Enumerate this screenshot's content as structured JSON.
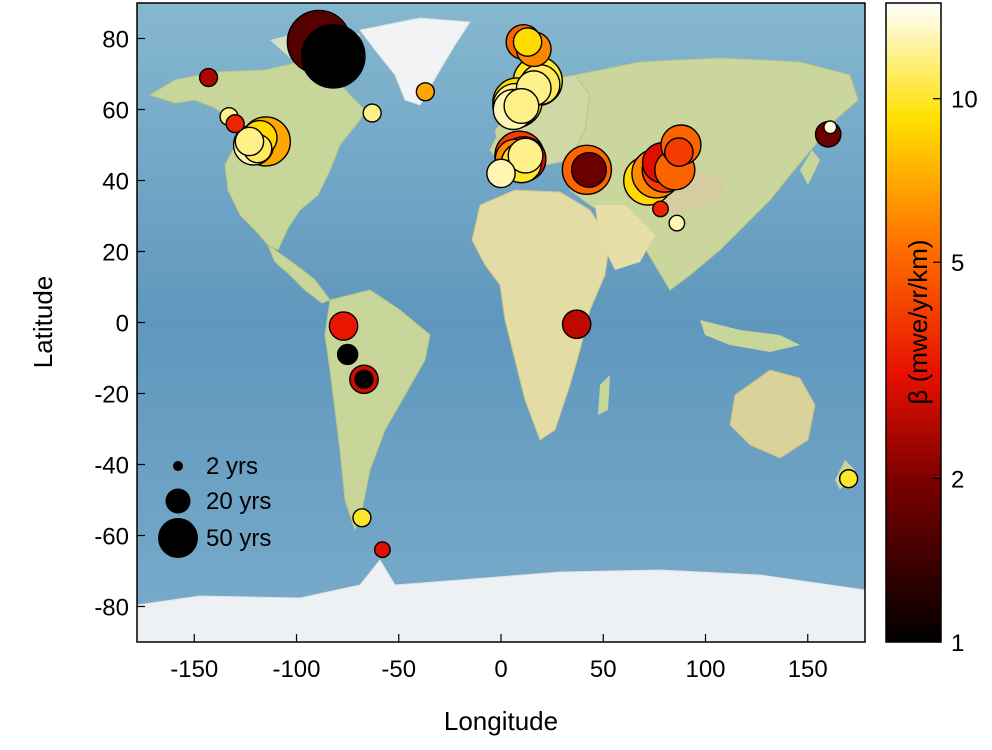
{
  "chart_data": {
    "type": "scatter",
    "background": "world map",
    "xlabel": "Longitude",
    "ylabel": "Latitude",
    "xlim": [
      -178,
      178
    ],
    "ylim": [
      -90,
      90
    ],
    "xticks": [
      -150,
      -100,
      -50,
      0,
      50,
      100,
      150
    ],
    "yticks": [
      -80,
      -60,
      -40,
      -20,
      0,
      20,
      40,
      60,
      80
    ],
    "grid": false,
    "colorbar": {
      "label": "β (mwe/yr/km)",
      "scale": "log",
      "range": [
        1,
        15
      ],
      "ticks": [
        1,
        2,
        5,
        10
      ],
      "colormap": "hot"
    },
    "size_legend": {
      "placement": "bottom-left",
      "entries": [
        {
          "label": "2 yrs",
          "years": 2
        },
        {
          "label": "20 yrs",
          "years": 20
        },
        {
          "label": "50 yrs",
          "years": 50
        }
      ]
    },
    "points": [
      {
        "lon": -89,
        "lat": 79,
        "years": 50,
        "beta": 1.6
      },
      {
        "lon": -82,
        "lat": 75,
        "years": 50,
        "beta": 1.0
      },
      {
        "lon": -143,
        "lat": 69,
        "years": 4,
        "beta": 2.4
      },
      {
        "lon": -37,
        "lat": 65,
        "years": 4,
        "beta": 7
      },
      {
        "lon": -63,
        "lat": 59,
        "years": 4,
        "beta": 12
      },
      {
        "lon": -133,
        "lat": 58,
        "years": 4,
        "beta": 12
      },
      {
        "lon": -130,
        "lat": 56,
        "years": 4,
        "beta": 3.5
      },
      {
        "lon": -115,
        "lat": 51,
        "years": 30,
        "beta": 7
      },
      {
        "lon": -118,
        "lat": 52,
        "years": 15,
        "beta": 9
      },
      {
        "lon": -121,
        "lat": 50,
        "years": 20,
        "beta": 13
      },
      {
        "lon": -119,
        "lat": 49,
        "years": 10,
        "beta": 11
      },
      {
        "lon": -123,
        "lat": 51,
        "years": 10,
        "beta": 12
      },
      {
        "lon": 11,
        "lat": 79,
        "years": 15,
        "beta": 5
      },
      {
        "lon": 13,
        "lat": 79,
        "years": 10,
        "beta": 9
      },
      {
        "lon": 16,
        "lat": 77,
        "years": 15,
        "beta": 6
      },
      {
        "lon": 18,
        "lat": 68,
        "years": 30,
        "beta": 10
      },
      {
        "lon": 19,
        "lat": 67,
        "years": 20,
        "beta": 11
      },
      {
        "lon": 16,
        "lat": 66,
        "years": 15,
        "beta": 12
      },
      {
        "lon": 8,
        "lat": 62,
        "years": 30,
        "beta": 9
      },
      {
        "lon": 7,
        "lat": 61,
        "years": 25,
        "beta": 12
      },
      {
        "lon": 6,
        "lat": 60,
        "years": 20,
        "beta": 13
      },
      {
        "lon": 10,
        "lat": 61,
        "years": 15,
        "beta": 12
      },
      {
        "lon": 9,
        "lat": 47,
        "years": 30,
        "beta": 4
      },
      {
        "lon": 11,
        "lat": 46,
        "years": 25,
        "beta": 3
      },
      {
        "lon": 7,
        "lat": 46,
        "years": 20,
        "beta": 6
      },
      {
        "lon": 10,
        "lat": 45,
        "years": 20,
        "beta": 10
      },
      {
        "lon": 12,
        "lat": 47,
        "years": 15,
        "beta": 12
      },
      {
        "lon": 0,
        "lat": 42,
        "years": 10,
        "beta": 13
      },
      {
        "lon": 42,
        "lat": 43,
        "years": 30,
        "beta": 5
      },
      {
        "lon": 43,
        "lat": 43,
        "years": 15,
        "beta": 1.8
      },
      {
        "lon": 72,
        "lat": 40,
        "years": 30,
        "beta": 9
      },
      {
        "lon": 76,
        "lat": 42,
        "years": 30,
        "beta": 6
      },
      {
        "lon": 80,
        "lat": 43,
        "years": 25,
        "beta": 4
      },
      {
        "lon": 79,
        "lat": 45,
        "years": 20,
        "beta": 3
      },
      {
        "lon": 85,
        "lat": 43,
        "years": 20,
        "beta": 5
      },
      {
        "lon": 88,
        "lat": 50,
        "years": 20,
        "beta": 5
      },
      {
        "lon": 87,
        "lat": 48,
        "years": 10,
        "beta": 4
      },
      {
        "lon": 78,
        "lat": 32,
        "years": 3,
        "beta": 3.5
      },
      {
        "lon": 86,
        "lat": 28,
        "years": 3,
        "beta": 13
      },
      {
        "lon": 160,
        "lat": 53,
        "years": 8,
        "beta": 1.8
      },
      {
        "lon": 161,
        "lat": 55,
        "years": 2,
        "beta": 14
      },
      {
        "lon": -77,
        "lat": -1,
        "years": 10,
        "beta": 3.2
      },
      {
        "lon": -75,
        "lat": -9,
        "years": 5,
        "beta": 1.0
      },
      {
        "lon": -67,
        "lat": -16,
        "years": 10,
        "beta": 2.8
      },
      {
        "lon": -67,
        "lat": -16,
        "years": 4,
        "beta": 1.0
      },
      {
        "lon": 37,
        "lat": -0.5,
        "years": 10,
        "beta": 2.6
      },
      {
        "lon": -68,
        "lat": -55,
        "years": 4,
        "beta": 10
      },
      {
        "lon": -58,
        "lat": -64,
        "years": 3,
        "beta": 3
      },
      {
        "lon": 170,
        "lat": -44,
        "years": 4,
        "beta": 10
      }
    ]
  }
}
